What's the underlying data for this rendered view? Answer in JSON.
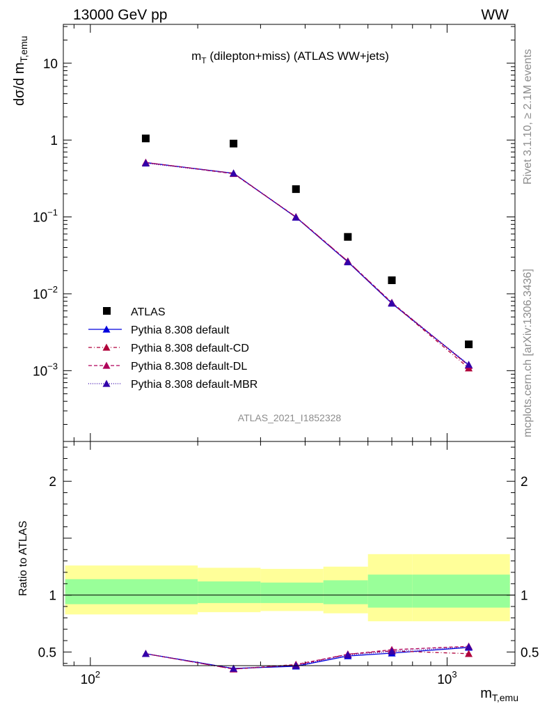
{
  "header": {
    "left": "13000 GeV pp",
    "right": "WW"
  },
  "side": {
    "rivet": "Rivet 3.1.10, ≥ 2.1M events",
    "mcplots": "mcplots.cern.ch [arXiv:1306.3436]"
  },
  "watermark": "ATLAS_2021_I1852328",
  "labels": {
    "plot_title_main": "m",
    "plot_title_sub": "T",
    "plot_title_rest": " (dilepton+miss) (ATLAS WW+jets)",
    "ylabel_main": "dσ/d m",
    "ylabel_sub": "T,emu",
    "xlabel_main": "m",
    "xlabel_sub": "T,emu",
    "ratio_ylabel": "Ratio to ATLAS"
  },
  "ticks": {
    "main_y": [
      {
        "base": "10",
        "exp": "",
        "label": "10",
        "v": 10
      },
      {
        "base": "1",
        "exp": "",
        "label": "1",
        "v": 1
      },
      {
        "base": "10",
        "exp": "−1",
        "v": 0.1
      },
      {
        "base": "10",
        "exp": "−2",
        "v": 0.01
      },
      {
        "base": "10",
        "exp": "−3",
        "v": 0.001
      }
    ],
    "ratio_y": [
      {
        "label": "2",
        "v": 2
      },
      {
        "label": "1",
        "v": 1
      },
      {
        "label": "0.5",
        "v": 0.5
      }
    ],
    "x": [
      {
        "base": "10",
        "exp": "2",
        "v": 100
      },
      {
        "base": "10",
        "exp": "3",
        "v": 1000
      }
    ]
  },
  "legend": [
    {
      "label": "ATLAS",
      "color": "#000000",
      "marker": "square",
      "dash": ""
    },
    {
      "label": "Pythia 8.308 default",
      "color": "#0000dd",
      "marker": "triangle",
      "dash": ""
    },
    {
      "label": "Pythia 8.308 default-CD",
      "color": "#b0003a",
      "marker": "triangle",
      "dash": "5,3,1,3"
    },
    {
      "label": "Pythia 8.308 default-DL",
      "color": "#b0005a",
      "marker": "triangle",
      "dash": "5,3"
    },
    {
      "label": "Pythia 8.308 default-MBR",
      "color": "#3300aa",
      "marker": "triangle",
      "dash": "1,2"
    }
  ],
  "chart_data": {
    "type": "scatter",
    "x_scale": "log",
    "y_scale": "log",
    "xlim": [
      84,
      1550
    ],
    "ylim": [
      0.00012,
      32
    ],
    "ratio_ylim": [
      0.38,
      2.35
    ],
    "bin_edges": [
      85,
      200,
      300,
      450,
      600,
      800,
      1500
    ],
    "x": [
      143,
      252,
      377,
      527,
      700,
      1150
    ],
    "series": [
      {
        "name": "ATLAS",
        "color": "#000000",
        "y": [
          1.05,
          0.9,
          0.23,
          0.055,
          0.015,
          0.0022
        ]
      },
      {
        "name": "Pythia 8.308 default",
        "color": "#0000dd",
        "y": [
          0.51,
          0.37,
          0.099,
          0.026,
          0.0075,
          0.00118
        ],
        "ratio": [
          0.485,
          0.355,
          0.375,
          0.465,
          0.49,
          0.54
        ]
      },
      {
        "name": "Pythia 8.308 default-CD",
        "color": "#b0003a",
        "y": [
          0.51,
          0.37,
          0.1,
          0.0265,
          0.0076,
          0.00108
        ],
        "ratio": [
          0.485,
          0.35,
          0.385,
          0.48,
          0.51,
          0.485
        ]
      },
      {
        "name": "Pythia 8.308 default-DL",
        "color": "#b0005a",
        "y": [
          0.51,
          0.365,
          0.1,
          0.0265,
          0.0077,
          0.00116
        ],
        "ratio": [
          0.485,
          0.35,
          0.39,
          0.48,
          0.52,
          0.55
        ]
      },
      {
        "name": "Pythia 8.308 default-MBR",
        "color": "#3300aa",
        "y": [
          0.5,
          0.37,
          0.099,
          0.026,
          0.0076,
          0.0012
        ],
        "ratio": [
          0.485,
          0.355,
          0.38,
          0.475,
          0.505,
          0.545
        ]
      }
    ],
    "ratio_bands": {
      "inner_color": "#99ff99",
      "outer_color": "#ffff99",
      "inner": [
        [
          0.92,
          1.14
        ],
        [
          0.93,
          1.12
        ],
        [
          0.93,
          1.11
        ],
        [
          0.92,
          1.13
        ],
        [
          0.89,
          1.18
        ],
        [
          0.89,
          1.18
        ]
      ],
      "outer": [
        [
          0.83,
          1.26
        ],
        [
          0.85,
          1.24
        ],
        [
          0.86,
          1.23
        ],
        [
          0.84,
          1.25
        ],
        [
          0.77,
          1.36
        ],
        [
          0.77,
          1.36
        ]
      ]
    }
  }
}
